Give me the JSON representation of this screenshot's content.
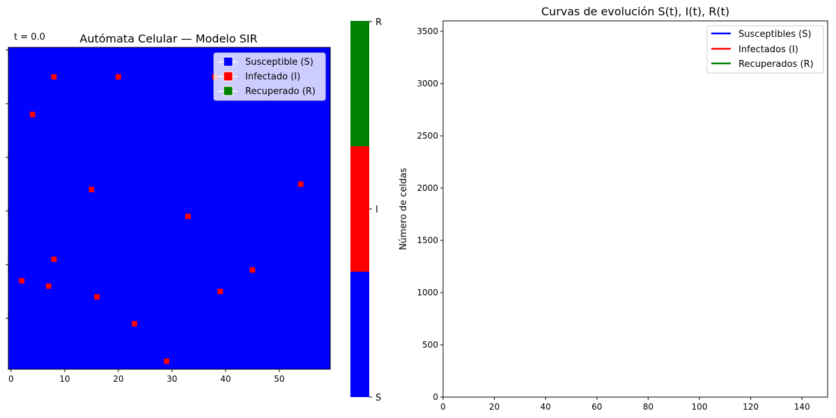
{
  "chart_data": [
    {
      "type": "heatmap",
      "title": "Autómata Celular — Modelo SIR",
      "time_label": "t = 0.0",
      "grid_cols": 60,
      "grid_rows": 60,
      "xticks": [
        0,
        10,
        20,
        30,
        40,
        50
      ],
      "state_colors": {
        "S": "#0000ff",
        "I": "#ff0000",
        "R": "#008000"
      },
      "background_state": "S",
      "infected_cells": [
        {
          "x": 8,
          "y": 5
        },
        {
          "x": 20,
          "y": 5
        },
        {
          "x": 38,
          "y": 5
        },
        {
          "x": 4,
          "y": 12
        },
        {
          "x": 15,
          "y": 26
        },
        {
          "x": 54,
          "y": 25
        },
        {
          "x": 33,
          "y": 31
        },
        {
          "x": 8,
          "y": 39
        },
        {
          "x": 45,
          "y": 41
        },
        {
          "x": 2,
          "y": 43
        },
        {
          "x": 7,
          "y": 44
        },
        {
          "x": 39,
          "y": 45
        },
        {
          "x": 16,
          "y": 46
        },
        {
          "x": 23,
          "y": 51
        },
        {
          "x": 29,
          "y": 58
        }
      ],
      "legend": {
        "placement": "top-right",
        "entries": [
          {
            "label": "Susceptible (S)",
            "color": "#0000ff"
          },
          {
            "label": "Infectado (I)",
            "color": "#ff0000"
          },
          {
            "label": "Recuperado (R)",
            "color": "#008000"
          }
        ]
      },
      "colorbar": {
        "segments": [
          {
            "label": "S",
            "color": "#0000ff"
          },
          {
            "label": "I",
            "color": "#ff0000"
          },
          {
            "label": "R",
            "color": "#008000"
          }
        ]
      }
    },
    {
      "type": "line",
      "title": "Curvas de evolución S(t), I(t), R(t)",
      "xlabel": "",
      "ylabel": "Número de celdas",
      "xlim": [
        0,
        150
      ],
      "ylim": [
        0,
        3600
      ],
      "xticks": [
        0,
        20,
        40,
        60,
        80,
        100,
        120,
        140
      ],
      "yticks": [
        0,
        500,
        1000,
        1500,
        2000,
        2500,
        3000,
        3500
      ],
      "series": [
        {
          "name": "Susceptibles (S)",
          "color": "#0000ff",
          "values": []
        },
        {
          "name": "Infectados (I)",
          "color": "#ff0000",
          "values": []
        },
        {
          "name": "Recuperados (R)",
          "color": "#008000",
          "values": []
        }
      ],
      "legend": {
        "placement": "top-right"
      }
    }
  ]
}
